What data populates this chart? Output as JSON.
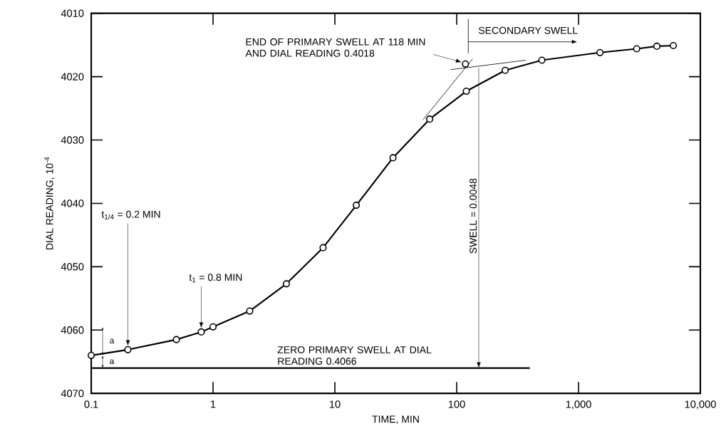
{
  "chart_data": {
    "type": "line",
    "xlabel": "TIME, MIN",
    "ylabel": "DIAL READING, 10$^{-4}$",
    "log": "x",
    "marker": "circle",
    "line_style": "solid",
    "grid": false,
    "xlim": [
      0.1,
      10000
    ],
    "xticks": [
      0.1,
      1,
      10,
      100,
      {
        "value": 1000,
        "label": "1,000"
      },
      {
        "value": 10000,
        "label": "10,000"
      }
    ],
    "ylim": [
      4070,
      4010
    ],
    "yticks": [
      4010,
      4020,
      4030,
      4040,
      4050,
      4060,
      4070
    ],
    "series": [
      {
        "color": "#000000",
        "x": [
          0.1,
          0.2,
          0.5,
          0.8,
          1,
          2,
          4,
          8,
          15,
          30,
          60,
          120,
          250,
          500,
          1500,
          3000,
          4400,
          6000
        ],
        "values": [
          4064.0,
          4063.1,
          4061.5,
          4060.3,
          4059.5,
          4057.0,
          4052.7,
          4047.0,
          4040.3,
          4032.8,
          4026.7,
          4022.3,
          4019.0,
          4017.4,
          4016.2,
          4015.6,
          4015.2,
          4015.1
        ]
      },
      {
        "type": "line",
        "marker": "none",
        "color": "#000000",
        "x": [
          53,
          135
        ],
        "values": [
          4026.8,
          4017.2
        ]
      },
      {
        "type": "line",
        "marker": "none",
        "color": "#000000",
        "x": [
          89,
          370
        ],
        "values": [
          4018.9,
          4017.4
        ]
      },
      {
        "type": "scatter",
        "color": "#000000",
        "x": [
          118
        ],
        "values": [
          4018
        ]
      }
    ],
    "ref_lines": [
      {
        "axis": "y",
        "value": 4066,
        "label": "ZERO PRIMARY SWELL AT DIAL READING 0.4066",
        "color": "#000000"
      }
    ],
    "annotations": [
      "END OF PRIMARY SWELL AT 118 MIN AND DIAL READING 0.4018",
      "t$_{1/4}$ = 0.2 MIN",
      "t$_{1}$ = 0.8 MIN",
      "SWELL = 0.0048",
      "a",
      "a",
      "SECONDARY SWELL"
    ]
  }
}
